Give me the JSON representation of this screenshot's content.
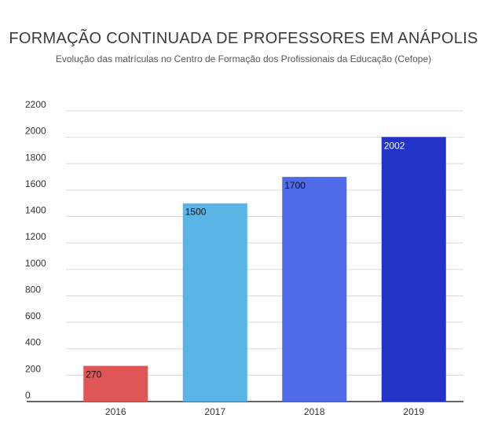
{
  "chart_data": {
    "type": "bar",
    "title": "FORMAÇÃO CONTINUADA DE PROFESSORES EM ANÁPOLIS",
    "subtitle": "Evolução das matrículas no Centro de Formação dos Profissionais da Educação (Cefope)",
    "categories": [
      "2016",
      "2017",
      "2018",
      "2019"
    ],
    "values": [
      270,
      1500,
      1700,
      2002
    ],
    "data_labels": [
      "270",
      "1500",
      "1700",
      "2002"
    ],
    "colors": [
      "#e05555",
      "#5ab4e5",
      "#4f6be8",
      "#2233c8"
    ],
    "label_colors": [
      "#111111",
      "#111111",
      "#111111",
      "#ffffff"
    ],
    "ylim": [
      0,
      2200
    ],
    "yticks": [
      "0",
      "200",
      "400",
      "600",
      "800",
      "1000",
      "1200",
      "1400",
      "1600",
      "1800",
      "2000",
      "2200"
    ],
    "xlabel": "",
    "ylabel": "",
    "grid": true,
    "legend": "none"
  }
}
